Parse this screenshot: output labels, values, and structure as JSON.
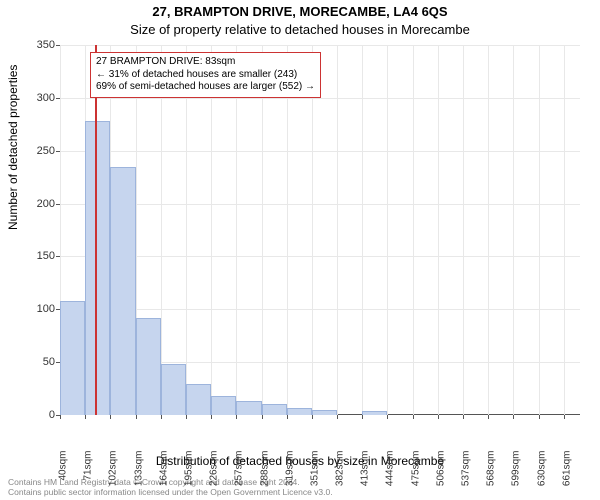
{
  "titles": {
    "line1": "27, BRAMPTON DRIVE, MORECAMBE, LA4 6QS",
    "line2": "Size of property relative to detached houses in Morecambe"
  },
  "ylabel": "Number of detached properties",
  "xlabel": "Distribution of detached houses by size in Morecambe",
  "chart": {
    "type": "histogram",
    "xlim": [
      40,
      680
    ],
    "ylim": [
      0,
      350
    ],
    "ytick_step": 50,
    "bar_color": "#c6d5ee",
    "bar_border_color": "#9db4dc",
    "grid_color": "#e8e8e8",
    "axis_color": "#555555",
    "background_color": "#ffffff",
    "categories": [
      "40sqm",
      "71sqm",
      "102sqm",
      "133sqm",
      "164sqm",
      "195sqm",
      "226sqm",
      "257sqm",
      "288sqm",
      "319sqm",
      "351sqm",
      "382sqm",
      "413sqm",
      "444sqm",
      "475sqm",
      "506sqm",
      "537sqm",
      "568sqm",
      "599sqm",
      "630sqm",
      "661sqm"
    ],
    "values": [
      108,
      278,
      235,
      92,
      48,
      29,
      18,
      13,
      10,
      7,
      5,
      0,
      4,
      0,
      0,
      0,
      0,
      0,
      0,
      0,
      0
    ],
    "bin_width": 31,
    "marker": {
      "x": 83,
      "color": "#cc3333"
    }
  },
  "annotation": {
    "line1": "27 BRAMPTON DRIVE: 83sqm",
    "line2": "← 31% of detached houses are smaller (243)",
    "line3": "69% of semi-detached houses are larger (552) →",
    "border_color": "#cc3333",
    "background_color": "#ffffff",
    "font_size": 10
  },
  "footer": {
    "line1": "Contains HM Land Registry data © Crown copyright and database right 2024.",
    "line2": "Contains public sector information licensed under the Open Government Licence v3.0."
  }
}
